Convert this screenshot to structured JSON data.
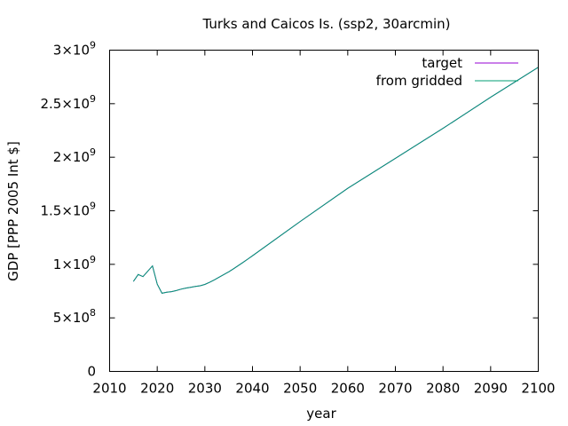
{
  "chart_data": {
    "type": "line",
    "title": "Turks and Caicos Is. (ssp2, 30arcmin)",
    "xlabel": "year",
    "ylabel": "GDP [PPP 2005 Int $]",
    "xlim": [
      2010,
      2100
    ],
    "ylim": [
      0,
      3000000000
    ],
    "x_ticks": [
      {
        "value": 2010,
        "label": "2010"
      },
      {
        "value": 2020,
        "label": "2020"
      },
      {
        "value": 2030,
        "label": "2030"
      },
      {
        "value": 2040,
        "label": "2040"
      },
      {
        "value": 2050,
        "label": "2050"
      },
      {
        "value": 2060,
        "label": "2060"
      },
      {
        "value": 2070,
        "label": "2070"
      },
      {
        "value": 2080,
        "label": "2080"
      },
      {
        "value": 2090,
        "label": "2090"
      },
      {
        "value": 2100,
        "label": "2100"
      }
    ],
    "y_ticks": [
      {
        "value": 0,
        "mant": "0",
        "exp": ""
      },
      {
        "value": 500000000,
        "mant": "5×10",
        "exp": "8"
      },
      {
        "value": 1000000000,
        "mant": "1×10",
        "exp": "9"
      },
      {
        "value": 1500000000,
        "mant": "1.5×10",
        "exp": "9"
      },
      {
        "value": 2000000000,
        "mant": "2×10",
        "exp": "9"
      },
      {
        "value": 2500000000,
        "mant": "2.5×10",
        "exp": "9"
      },
      {
        "value": 3000000000,
        "mant": "3×10",
        "exp": "9"
      }
    ],
    "grid": false,
    "legend_position": "top-right",
    "series": [
      {
        "name": "target",
        "color": "#9400d3",
        "x": [
          2015,
          2016,
          2017,
          2018,
          2019,
          2020,
          2021,
          2022,
          2023,
          2024,
          2025,
          2026,
          2027,
          2028,
          2029,
          2030,
          2031,
          2032,
          2033,
          2034,
          2035,
          2036,
          2037,
          2038,
          2039,
          2040,
          2050,
          2060,
          2070,
          2080,
          2090,
          2100
        ],
        "values": [
          840000000,
          905000000,
          885000000,
          935000000,
          985000000,
          815000000,
          730000000,
          740000000,
          745000000,
          755000000,
          768000000,
          778000000,
          786000000,
          793000000,
          800000000,
          812000000,
          832000000,
          855000000,
          880000000,
          905000000,
          930000000,
          958000000,
          988000000,
          1018000000,
          1048000000,
          1080000000,
          1400000000,
          1710000000,
          1990000000,
          2270000000,
          2560000000,
          2840000000
        ]
      },
      {
        "name": "from gridded",
        "color": "#009e73",
        "x": [
          2015,
          2016,
          2017,
          2018,
          2019,
          2020,
          2021,
          2022,
          2023,
          2024,
          2025,
          2026,
          2027,
          2028,
          2029,
          2030,
          2031,
          2032,
          2033,
          2034,
          2035,
          2036,
          2037,
          2038,
          2039,
          2040,
          2050,
          2060,
          2070,
          2080,
          2090,
          2100
        ],
        "values": [
          840000000,
          905000000,
          885000000,
          935000000,
          985000000,
          815000000,
          730000000,
          740000000,
          745000000,
          755000000,
          768000000,
          778000000,
          786000000,
          793000000,
          800000000,
          812000000,
          832000000,
          855000000,
          880000000,
          905000000,
          930000000,
          958000000,
          988000000,
          1018000000,
          1048000000,
          1080000000,
          1400000000,
          1710000000,
          1990000000,
          2270000000,
          2560000000,
          2840000000
        ]
      }
    ]
  }
}
